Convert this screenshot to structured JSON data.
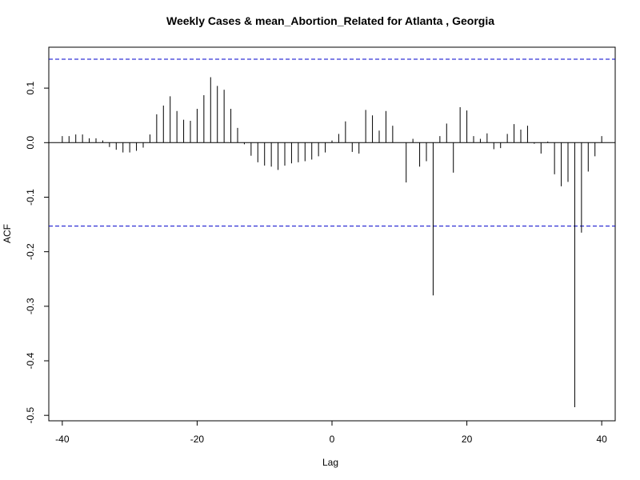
{
  "chart_data": {
    "type": "bar",
    "title": "Weekly Cases & mean_Abortion_Related for Atlanta , Georgia",
    "xlabel": "Lag",
    "ylabel": "ACF",
    "xlim": [
      -42,
      42
    ],
    "ylim": [
      -0.51,
      0.175
    ],
    "x_ticks": [
      -40,
      -20,
      0,
      20,
      40
    ],
    "y_ticks": [
      -0.5,
      -0.4,
      -0.3,
      -0.2,
      -0.1,
      0.0,
      0.1
    ],
    "y_tick_labels": [
      "-0.5",
      "-0.4",
      "-0.3",
      "-0.2",
      "-0.1",
      "0.0",
      "0.1"
    ],
    "confidence_bound": 0.153,
    "colors": {
      "bars": "#000000",
      "zero_line": "#000000",
      "confidence_lines": "#0000cc",
      "frame": "#000000"
    },
    "lags": [
      -40,
      -39,
      -38,
      -37,
      -36,
      -35,
      -34,
      -33,
      -32,
      -31,
      -30,
      -29,
      -28,
      -27,
      -26,
      -25,
      -24,
      -23,
      -22,
      -21,
      -20,
      -19,
      -18,
      -17,
      -16,
      -15,
      -14,
      -13,
      -12,
      -11,
      -10,
      -9,
      -8,
      -7,
      -6,
      -5,
      -4,
      -3,
      -2,
      -1,
      0,
      1,
      2,
      3,
      4,
      5,
      6,
      7,
      8,
      9,
      10,
      11,
      12,
      13,
      14,
      15,
      16,
      17,
      18,
      19,
      20,
      21,
      22,
      23,
      24,
      25,
      26,
      27,
      28,
      29,
      30,
      31,
      32,
      33,
      34,
      35,
      36,
      37,
      38,
      39,
      40
    ],
    "values": [
      0.012,
      0.012,
      0.015,
      0.015,
      0.008,
      0.008,
      0.004,
      -0.008,
      -0.013,
      -0.018,
      -0.018,
      -0.015,
      -0.009,
      0.015,
      0.052,
      0.068,
      0.085,
      0.058,
      0.042,
      0.04,
      0.062,
      0.087,
      0.12,
      0.104,
      0.097,
      0.062,
      0.027,
      -0.003,
      -0.024,
      -0.036,
      -0.042,
      -0.044,
      -0.05,
      -0.042,
      -0.038,
      -0.036,
      -0.034,
      -0.031,
      -0.025,
      -0.018,
      0.004,
      0.016,
      0.039,
      -0.017,
      -0.02,
      0.06,
      0.05,
      0.022,
      0.058,
      0.031,
      0.0,
      -0.073,
      0.007,
      -0.044,
      -0.034,
      -0.28,
      0.012,
      0.035,
      -0.055,
      0.065,
      0.059,
      0.012,
      0.007,
      0.017,
      -0.012,
      -0.01,
      0.016,
      0.034,
      0.024,
      0.031,
      -0.002,
      -0.02,
      0.002,
      -0.058,
      -0.08,
      -0.072,
      -0.485,
      -0.165,
      -0.053,
      -0.025,
      0.012
    ]
  }
}
